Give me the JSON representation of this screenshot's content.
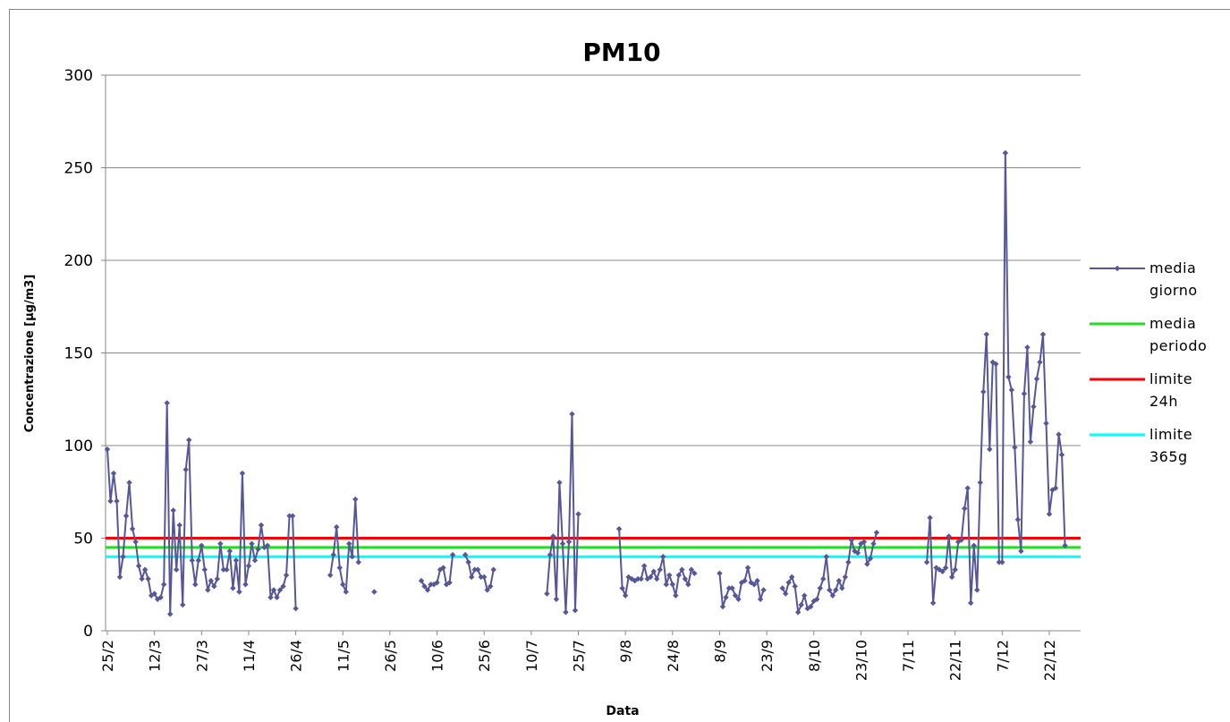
{
  "chart_data": {
    "type": "line",
    "title": "PM10",
    "x_label": "Data",
    "y_label": "Concentrazione [µg/m3]",
    "categories": [
      "25/2",
      null,
      null,
      null,
      null,
      null,
      null,
      null,
      null,
      null,
      null,
      null,
      null,
      null,
      null,
      "12/3",
      null,
      null,
      null,
      null,
      null,
      null,
      null,
      null,
      null,
      null,
      null,
      null,
      null,
      null,
      "27/3",
      null,
      null,
      null,
      null,
      null,
      null,
      null,
      null,
      null,
      null,
      null,
      null,
      null,
      null,
      "11/4",
      null,
      null,
      null,
      null,
      null,
      null,
      null,
      null,
      null,
      null,
      null,
      null,
      null,
      null,
      "26/4",
      null,
      null,
      null,
      null,
      null,
      null,
      null,
      null,
      null,
      null,
      null,
      null,
      null,
      null,
      "11/5",
      null,
      null,
      null,
      null,
      null,
      null,
      null,
      null,
      null,
      null,
      null,
      null,
      null,
      null,
      "26/5",
      null,
      null,
      null,
      null,
      null,
      null,
      null,
      null,
      null,
      null,
      null,
      null,
      null,
      null,
      "10/6",
      null,
      null,
      null,
      null,
      null,
      null,
      null,
      null,
      null,
      null,
      null,
      null,
      null,
      null,
      "25/6",
      null,
      null,
      null,
      null,
      null,
      null,
      null,
      null,
      null,
      null,
      null,
      null,
      null,
      null,
      "10/7",
      null,
      null,
      null,
      null,
      null,
      null,
      null,
      null,
      null,
      null,
      null,
      null,
      null,
      null,
      "25/7",
      null,
      null,
      null,
      null,
      null,
      null,
      null,
      null,
      null,
      null,
      null,
      null,
      null,
      null,
      "9/8",
      null,
      null,
      null,
      null,
      null,
      null,
      null,
      null,
      null,
      null,
      null,
      null,
      null,
      null,
      "24/8",
      null,
      null,
      null,
      null,
      null,
      null,
      null,
      null,
      null,
      null,
      null,
      null,
      null,
      null,
      "8/9",
      null,
      null,
      null,
      null,
      null,
      null,
      null,
      null,
      null,
      null,
      null,
      null,
      null,
      null,
      "23/9",
      null,
      null,
      null,
      null,
      null,
      null,
      null,
      null,
      null,
      null,
      null,
      null,
      null,
      null,
      "8/10",
      null,
      null,
      null,
      null,
      null,
      null,
      null,
      null,
      null,
      null,
      null,
      null,
      null,
      null,
      "23/10",
      null,
      null,
      null,
      null,
      null,
      null,
      null,
      null,
      null,
      null,
      null,
      null,
      null,
      null,
      "7/11",
      null,
      null,
      null,
      null,
      null,
      null,
      null,
      null,
      null,
      null,
      null,
      null,
      null,
      null,
      "22/11",
      null,
      null,
      null,
      null,
      null,
      null,
      null,
      null,
      null,
      null,
      null,
      null,
      null,
      null,
      "7/12",
      null,
      null,
      null,
      null,
      null,
      null,
      null,
      null,
      null,
      null,
      null,
      null,
      null,
      null,
      "22/12",
      null,
      null,
      null,
      null,
      null
    ],
    "series": [
      {
        "name": "media giorno",
        "color": "#55579a",
        "values": [
          98,
          70,
          85,
          70,
          29,
          40,
          62,
          80,
          55,
          48,
          35,
          28,
          33,
          28,
          19,
          20,
          17,
          18,
          25,
          123,
          9,
          65,
          33,
          57,
          14,
          87,
          103,
          38,
          25,
          38,
          46,
          33,
          22,
          27,
          24,
          28,
          47,
          33,
          33,
          43,
          23,
          38,
          21,
          85,
          25,
          35,
          47,
          38,
          44,
          57,
          45,
          46,
          18,
          22,
          18,
          22,
          24,
          30,
          62,
          62,
          12,
          null,
          null,
          null,
          null,
          null,
          null,
          null,
          null,
          null,
          null,
          30,
          41,
          56,
          34,
          25,
          21,
          47,
          40,
          71,
          37,
          null,
          null,
          null,
          null,
          21,
          null,
          null,
          null,
          null,
          null,
          null,
          null,
          null,
          null,
          null,
          null,
          null,
          null,
          null,
          27,
          24,
          22,
          25,
          25,
          26,
          33,
          34,
          25,
          26,
          41,
          null,
          null,
          null,
          41,
          37,
          29,
          33,
          33,
          29,
          29,
          22,
          24,
          33,
          null,
          null,
          null,
          null,
          null,
          null,
          null,
          null,
          null,
          null,
          null,
          null,
          null,
          null,
          null,
          null,
          20,
          41,
          51,
          17,
          80,
          47,
          10,
          48,
          117,
          11,
          63,
          null,
          null,
          null,
          null,
          null,
          null,
          null,
          null,
          null,
          null,
          null,
          null,
          55,
          23,
          19,
          29,
          28,
          27,
          28,
          28,
          35,
          28,
          29,
          32,
          28,
          33,
          40,
          25,
          30,
          25,
          19,
          30,
          33,
          28,
          25,
          33,
          31,
          null,
          null,
          null,
          null,
          null,
          null,
          null,
          31,
          13,
          18,
          23,
          23,
          19,
          17,
          26,
          27,
          34,
          26,
          25,
          27,
          17,
          22,
          null,
          null,
          null,
          null,
          null,
          23,
          20,
          26,
          29,
          24,
          10,
          14,
          19,
          12,
          13,
          16,
          17,
          23,
          28,
          40,
          22,
          19,
          22,
          27,
          23,
          29,
          37,
          49,
          43,
          42,
          47,
          48,
          36,
          39,
          47,
          53,
          null,
          null,
          null,
          null,
          null,
          null,
          null,
          null,
          null,
          null,
          null,
          null,
          null,
          null,
          null,
          37,
          61,
          15,
          34,
          33,
          32,
          34,
          51,
          29,
          33,
          48,
          49,
          66,
          77,
          15,
          46,
          22,
          80,
          129,
          160,
          98,
          145,
          144,
          37,
          37,
          258,
          137,
          130,
          99,
          60,
          43,
          128,
          153,
          102,
          121,
          136,
          145,
          160,
          112,
          63,
          76,
          77,
          106,
          95,
          46
        ]
      }
    ],
    "reference_lines": [
      {
        "name": "media periodo",
        "color": "#22dd22",
        "value": 45
      },
      {
        "name": "limite 24h",
        "color": "#ff0000",
        "value": 50
      },
      {
        "name": "limite 365g",
        "color": "#00ffff",
        "value": 40
      }
    ],
    "ylim": [
      0,
      300
    ],
    "yticks": [
      0,
      50,
      100,
      150,
      200,
      250,
      300
    ],
    "grid": true
  }
}
